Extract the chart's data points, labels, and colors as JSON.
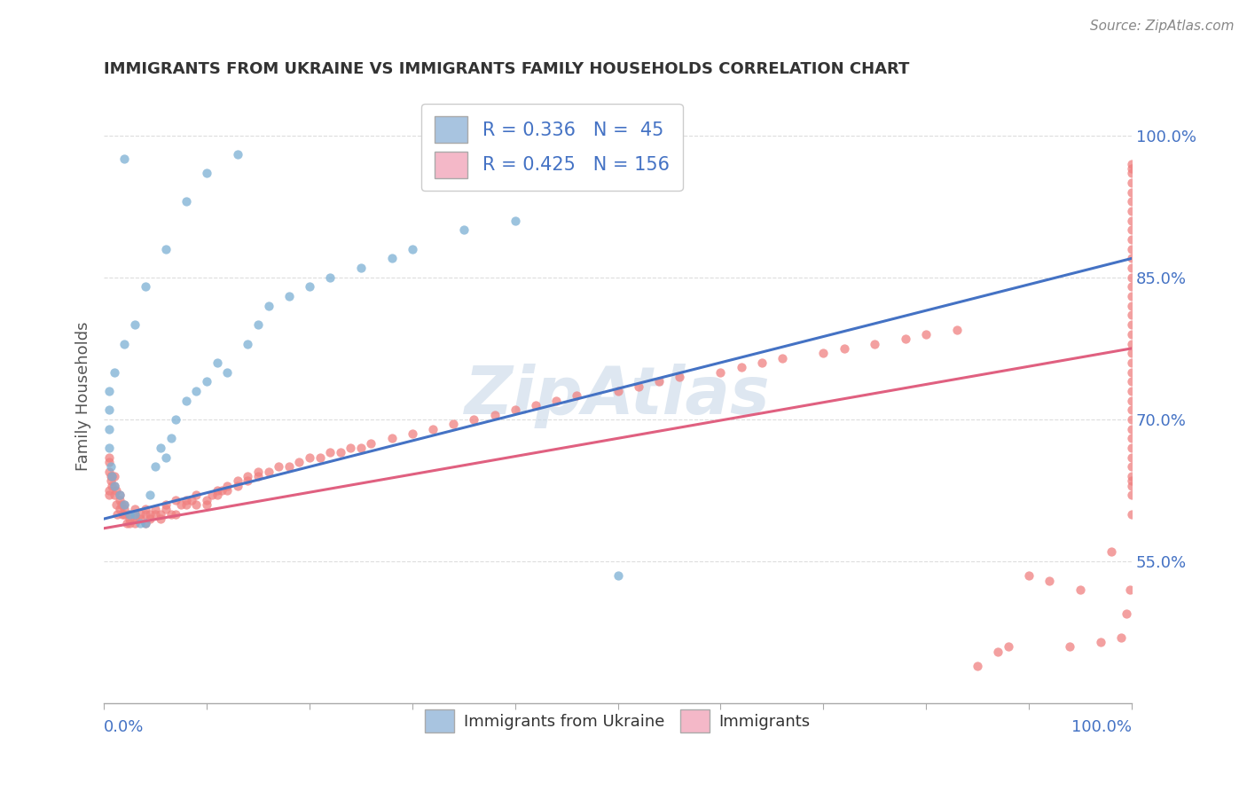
{
  "title": "IMMIGRANTS FROM UKRAINE VS IMMIGRANTS FAMILY HOUSEHOLDS CORRELATION CHART",
  "source": "Source: ZipAtlas.com",
  "ylabel": "Family Households",
  "watermark": "ZipAtlas",
  "blue_scatter": {
    "x": [
      0.02,
      0.13,
      0.1,
      0.08,
      0.06,
      0.04,
      0.03,
      0.02,
      0.01,
      0.005,
      0.005,
      0.005,
      0.005,
      0.007,
      0.008,
      0.01,
      0.015,
      0.02,
      0.025,
      0.03,
      0.035,
      0.04,
      0.045,
      0.05,
      0.055,
      0.06,
      0.065,
      0.07,
      0.08,
      0.09,
      0.1,
      0.11,
      0.12,
      0.14,
      0.15,
      0.16,
      0.18,
      0.2,
      0.22,
      0.25,
      0.28,
      0.3,
      0.35,
      0.4,
      0.5
    ],
    "y": [
      0.975,
      0.98,
      0.96,
      0.93,
      0.88,
      0.84,
      0.8,
      0.78,
      0.75,
      0.73,
      0.71,
      0.69,
      0.67,
      0.65,
      0.64,
      0.63,
      0.62,
      0.61,
      0.6,
      0.6,
      0.59,
      0.59,
      0.62,
      0.65,
      0.67,
      0.66,
      0.68,
      0.7,
      0.72,
      0.73,
      0.74,
      0.76,
      0.75,
      0.78,
      0.8,
      0.82,
      0.83,
      0.84,
      0.85,
      0.86,
      0.87,
      0.88,
      0.9,
      0.91,
      0.535
    ]
  },
  "pink_scatter": {
    "x": [
      0.005,
      0.005,
      0.005,
      0.005,
      0.005,
      0.007,
      0.007,
      0.008,
      0.008,
      0.01,
      0.01,
      0.01,
      0.012,
      0.012,
      0.013,
      0.015,
      0.015,
      0.015,
      0.017,
      0.018,
      0.02,
      0.02,
      0.02,
      0.022,
      0.025,
      0.025,
      0.025,
      0.03,
      0.03,
      0.03,
      0.03,
      0.035,
      0.035,
      0.04,
      0.04,
      0.04,
      0.045,
      0.045,
      0.05,
      0.05,
      0.055,
      0.055,
      0.06,
      0.06,
      0.065,
      0.07,
      0.07,
      0.075,
      0.08,
      0.08,
      0.085,
      0.09,
      0.09,
      0.1,
      0.1,
      0.105,
      0.11,
      0.11,
      0.115,
      0.12,
      0.12,
      0.13,
      0.13,
      0.14,
      0.14,
      0.15,
      0.15,
      0.16,
      0.17,
      0.18,
      0.19,
      0.2,
      0.21,
      0.22,
      0.23,
      0.24,
      0.25,
      0.26,
      0.28,
      0.3,
      0.32,
      0.34,
      0.36,
      0.38,
      0.4,
      0.42,
      0.44,
      0.46,
      0.5,
      0.52,
      0.54,
      0.56,
      0.6,
      0.62,
      0.64,
      0.66,
      0.7,
      0.72,
      0.75,
      0.78,
      0.8,
      0.83,
      0.85,
      0.87,
      0.88,
      0.9,
      0.92,
      0.94,
      0.95,
      0.97,
      0.98,
      0.99,
      0.995,
      0.998,
      1.0,
      1.0,
      1.0,
      1.0,
      1.0,
      1.0,
      1.0,
      1.0,
      1.0,
      1.0,
      1.0,
      1.0,
      1.0,
      1.0,
      1.0,
      1.0,
      1.0,
      1.0,
      1.0,
      1.0,
      1.0,
      1.0,
      1.0,
      1.0,
      1.0,
      1.0,
      1.0,
      1.0,
      1.0,
      1.0,
      1.0,
      1.0,
      1.0,
      1.0,
      1.0,
      1.0,
      1.0,
      1.0,
      1.0
    ],
    "y": [
      0.625,
      0.645,
      0.655,
      0.66,
      0.62,
      0.635,
      0.64,
      0.63,
      0.64,
      0.63,
      0.64,
      0.62,
      0.625,
      0.61,
      0.6,
      0.615,
      0.62,
      0.605,
      0.61,
      0.6,
      0.61,
      0.6,
      0.605,
      0.59,
      0.59,
      0.595,
      0.6,
      0.59,
      0.6,
      0.605,
      0.595,
      0.6,
      0.595,
      0.605,
      0.59,
      0.6,
      0.595,
      0.6,
      0.605,
      0.6,
      0.6,
      0.595,
      0.605,
      0.61,
      0.6,
      0.615,
      0.6,
      0.61,
      0.61,
      0.615,
      0.615,
      0.62,
      0.61,
      0.61,
      0.615,
      0.62,
      0.62,
      0.625,
      0.625,
      0.625,
      0.63,
      0.63,
      0.635,
      0.64,
      0.635,
      0.64,
      0.645,
      0.645,
      0.65,
      0.65,
      0.655,
      0.66,
      0.66,
      0.665,
      0.665,
      0.67,
      0.67,
      0.675,
      0.68,
      0.685,
      0.69,
      0.695,
      0.7,
      0.705,
      0.71,
      0.715,
      0.72,
      0.725,
      0.73,
      0.735,
      0.74,
      0.745,
      0.75,
      0.755,
      0.76,
      0.765,
      0.77,
      0.775,
      0.78,
      0.785,
      0.79,
      0.795,
      0.44,
      0.455,
      0.46,
      0.535,
      0.53,
      0.46,
      0.52,
      0.465,
      0.56,
      0.47,
      0.495,
      0.52,
      0.6,
      0.62,
      0.63,
      0.64,
      0.635,
      0.65,
      0.66,
      0.67,
      0.68,
      0.69,
      0.7,
      0.71,
      0.72,
      0.73,
      0.74,
      0.75,
      0.76,
      0.77,
      0.78,
      0.79,
      0.8,
      0.81,
      0.82,
      0.83,
      0.84,
      0.85,
      0.86,
      0.87,
      0.88,
      0.89,
      0.9,
      0.91,
      0.92,
      0.93,
      0.94,
      0.95,
      0.96,
      0.965,
      0.97
    ]
  },
  "blue_line": {
    "x0": 0.0,
    "y0": 0.595,
    "x1": 1.0,
    "y1": 0.87
  },
  "pink_line": {
    "x0": 0.0,
    "y0": 0.585,
    "x1": 1.0,
    "y1": 0.775
  },
  "xlim": [
    0,
    1
  ],
  "ylim": [
    0.4,
    1.05
  ],
  "ytick_labels": [
    "55.0%",
    "70.0%",
    "85.0%",
    "100.0%"
  ],
  "ytick_values": [
    0.55,
    0.7,
    0.85,
    1.0
  ],
  "xtick_left_label": "0.0%",
  "xtick_right_label": "100.0%",
  "blue_color": "#7bafd4",
  "pink_color": "#f08080",
  "blue_line_color": "#4472c4",
  "pink_line_color": "#e06080",
  "legend_blue_color": "#a8c4e0",
  "legend_pink_color": "#f4b8c8",
  "legend_r_blue": "0.336",
  "legend_n_blue": "45",
  "legend_r_pink": "0.425",
  "legend_n_pink": "156",
  "scatter_alpha": 0.75,
  "scatter_size": 55,
  "watermark_color": "#c8d8e8",
  "bg_color": "#ffffff",
  "grid_color": "#dddddd",
  "title_color": "#333333",
  "axis_label_color": "#4472c4",
  "source_color": "#888888"
}
